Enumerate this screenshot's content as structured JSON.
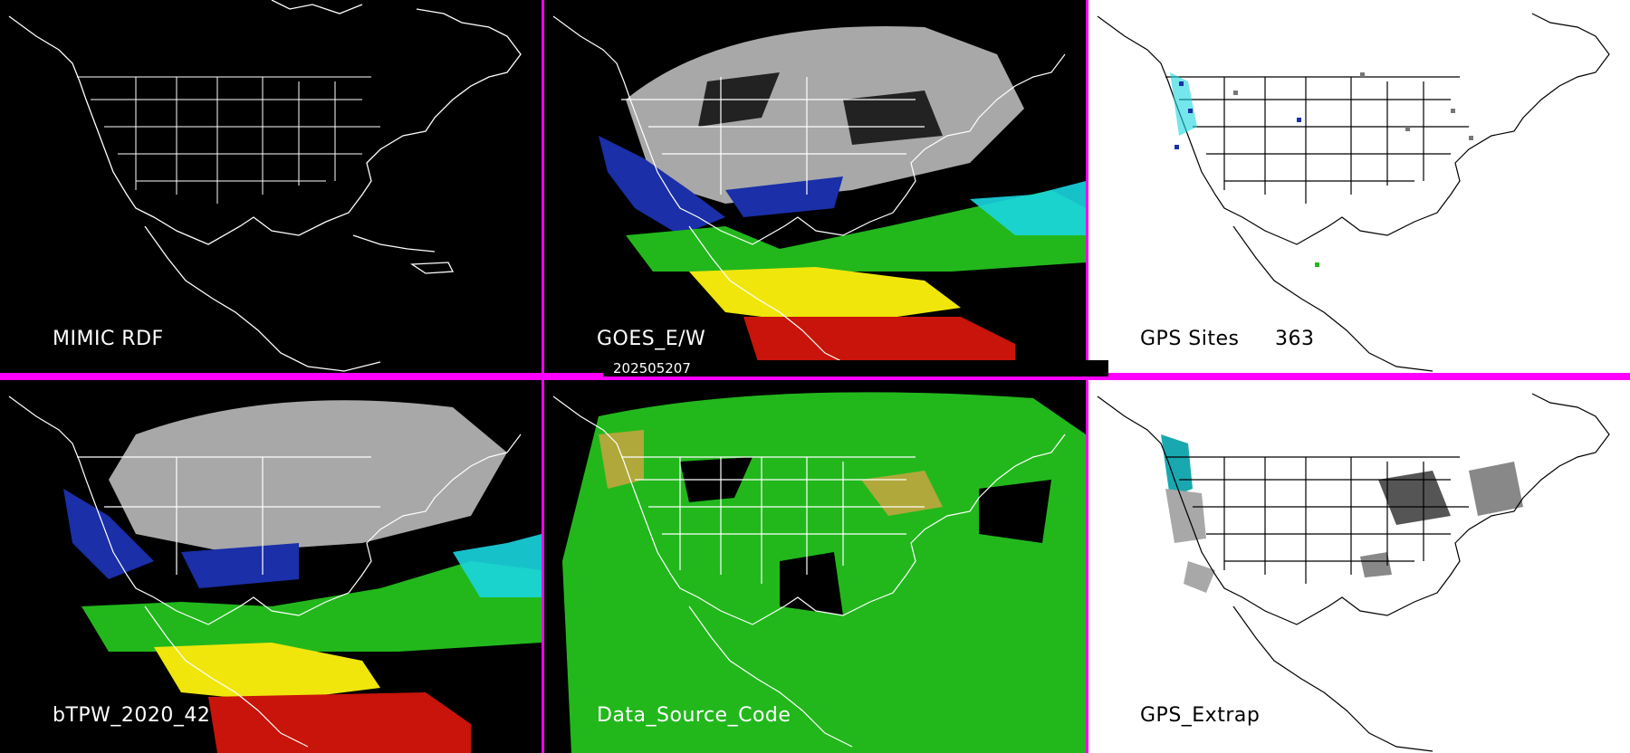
{
  "timestamp": "202505207",
  "panels": [
    {
      "id": "mimic-rdf",
      "label": "MIMIC RDF",
      "style": "outline-dark"
    },
    {
      "id": "goes-ew",
      "label": "GOES_E/W",
      "style": "satellite"
    },
    {
      "id": "gps-sites",
      "label": "GPS Sites",
      "count": "363",
      "style": "sites"
    },
    {
      "id": "btpw",
      "label": "bTPW_2020_42",
      "style": "satellite"
    },
    {
      "id": "data-source-code",
      "label": "Data_Source_Code",
      "style": "source"
    },
    {
      "id": "gps-extrap",
      "label": "GPS_Extrap",
      "style": "extrap"
    }
  ],
  "colors": {
    "divider": "#ff00ff",
    "coast_dark": "#ffffff",
    "coast_light": "#000000",
    "ocean_dark": "#000000",
    "ocean_light": "#ffffff",
    "grey_land": "#a8a8a8",
    "blue": "#1a2fa8",
    "cyan": "#19d6e0",
    "green": "#22b81c",
    "yellow": "#f0e60c",
    "red": "#c8140a",
    "olive": "#b0a83a"
  }
}
